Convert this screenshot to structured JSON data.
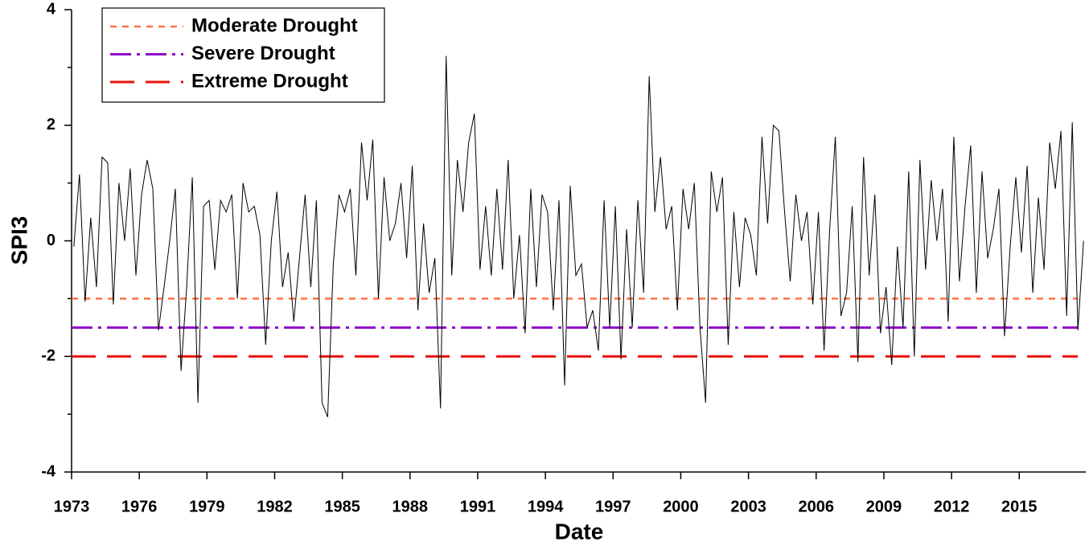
{
  "chart_data": {
    "type": "line",
    "x_label": "Date",
    "y_label": "SPI3",
    "xlim": [
      1973,
      2017.95
    ],
    "ylim": [
      -4,
      4
    ],
    "xticks": [
      1973,
      1976,
      1979,
      1982,
      1985,
      1988,
      1991,
      1994,
      1997,
      2000,
      2003,
      2006,
      2009,
      2012,
      2015
    ],
    "yticks": [
      -4,
      -2,
      0,
      2,
      4
    ],
    "yminor_ticks": [
      -3,
      -1,
      1,
      3
    ],
    "x": [
      1973.1,
      1973.35,
      1973.6,
      1973.85,
      1974.1,
      1974.35,
      1974.6,
      1974.85,
      1975.1,
      1975.35,
      1975.6,
      1975.85,
      1976.1,
      1976.35,
      1976.6,
      1976.85,
      1977.1,
      1977.35,
      1977.6,
      1977.85,
      1978.1,
      1978.35,
      1978.6,
      1978.85,
      1979.1,
      1979.35,
      1979.6,
      1979.85,
      1980.1,
      1980.35,
      1980.6,
      1980.85,
      1981.1,
      1981.35,
      1981.6,
      1981.85,
      1982.1,
      1982.35,
      1982.6,
      1982.85,
      1983.1,
      1983.35,
      1983.6,
      1983.85,
      1984.1,
      1984.35,
      1984.6,
      1984.85,
      1985.1,
      1985.35,
      1985.6,
      1985.85,
      1986.1,
      1986.35,
      1986.6,
      1986.85,
      1987.1,
      1987.35,
      1987.6,
      1987.85,
      1988.1,
      1988.35,
      1988.6,
      1988.85,
      1989.1,
      1989.35,
      1989.6,
      1989.85,
      1990.1,
      1990.35,
      1990.6,
      1990.85,
      1991.1,
      1991.35,
      1991.6,
      1991.85,
      1992.1,
      1992.35,
      1992.6,
      1992.85,
      1993.1,
      1993.35,
      1993.6,
      1993.85,
      1994.1,
      1994.35,
      1994.6,
      1994.85,
      1995.1,
      1995.35,
      1995.6,
      1995.85,
      1996.1,
      1996.35,
      1996.6,
      1996.85,
      1997.1,
      1997.35,
      1997.6,
      1997.85,
      1998.1,
      1998.35,
      1998.6,
      1998.85,
      1999.1,
      1999.35,
      1999.6,
      1999.85,
      2000.1,
      2000.35,
      2000.6,
      2000.85,
      2001.1,
      2001.35,
      2001.6,
      2001.85,
      2002.1,
      2002.35,
      2002.6,
      2002.85,
      2003.1,
      2003.35,
      2003.6,
      2003.85,
      2004.1,
      2004.35,
      2004.6,
      2004.85,
      2005.1,
      2005.35,
      2005.6,
      2005.85,
      2006.1,
      2006.35,
      2006.6,
      2006.85,
      2007.1,
      2007.35,
      2007.6,
      2007.85,
      2008.1,
      2008.35,
      2008.6,
      2008.85,
      2009.1,
      2009.35,
      2009.6,
      2009.85,
      2010.1,
      2010.35,
      2010.6,
      2010.85,
      2011.1,
      2011.35,
      2011.6,
      2011.85,
      2012.1,
      2012.35,
      2012.6,
      2012.85,
      2013.1,
      2013.35,
      2013.6,
      2013.85,
      2014.1,
      2014.35,
      2014.6,
      2014.85,
      2015.1,
      2015.35,
      2015.6,
      2015.85,
      2016.1,
      2016.35,
      2016.6,
      2016.85,
      2017.1,
      2017.35,
      2017.6,
      2017.85
    ],
    "series": [
      {
        "color": "#000000",
        "values": [
          -0.1,
          1.15,
          -1.05,
          0.4,
          -0.8,
          1.45,
          1.35,
          -1.1,
          1.0,
          0.0,
          1.25,
          -0.6,
          0.8,
          1.4,
          0.9,
          -1.55,
          -0.8,
          0.0,
          0.9,
          -2.25,
          -0.8,
          1.1,
          -2.8,
          0.6,
          0.7,
          -0.5,
          0.7,
          0.5,
          0.8,
          -1.0,
          1.0,
          0.5,
          0.6,
          0.1,
          -1.8,
          0.0,
          0.85,
          -0.8,
          -0.2,
          -1.4,
          -0.3,
          0.8,
          -0.8,
          0.7,
          -2.8,
          -3.05,
          -0.4,
          0.8,
          0.5,
          0.9,
          -0.6,
          1.7,
          0.7,
          1.75,
          -1.0,
          1.1,
          0.0,
          0.3,
          1.0,
          -0.3,
          1.3,
          -1.2,
          0.3,
          -0.9,
          -0.3,
          -2.9,
          3.2,
          -0.6,
          1.4,
          0.5,
          1.7,
          2.2,
          -0.5,
          0.6,
          -0.6,
          0.9,
          -0.5,
          1.4,
          -1.0,
          0.1,
          -1.6,
          0.9,
          -0.8,
          0.8,
          0.5,
          -1.2,
          0.7,
          -2.5,
          0.95,
          -0.6,
          -0.4,
          -1.5,
          -1.2,
          -1.9,
          0.7,
          -1.5,
          0.6,
          -2.05,
          0.2,
          -1.5,
          0.7,
          -0.9,
          2.85,
          0.5,
          1.45,
          0.2,
          0.6,
          -1.2,
          0.9,
          0.2,
          1.0,
          -1.5,
          -2.8,
          1.2,
          0.5,
          1.1,
          -1.8,
          0.5,
          -0.8,
          0.4,
          0.1,
          -0.6,
          1.8,
          0.3,
          2.0,
          1.9,
          0.5,
          -0.7,
          0.8,
          0.0,
          0.5,
          -1.1,
          0.5,
          -1.9,
          0.2,
          1.8,
          -1.3,
          -0.9,
          0.6,
          -2.1,
          1.45,
          -0.6,
          0.8,
          -1.6,
          -0.8,
          -2.15,
          -0.1,
          -1.5,
          1.2,
          -2.0,
          1.4,
          -0.5,
          1.05,
          0.0,
          0.9,
          -1.4,
          1.8,
          -0.7,
          0.6,
          1.65,
          -0.9,
          1.2,
          -0.3,
          0.2,
          0.9,
          -1.65,
          -0.1,
          1.1,
          -0.2,
          1.3,
          -0.9,
          0.75,
          -0.5,
          1.7,
          0.9,
          1.9,
          -1.3,
          2.05,
          -1.55,
          0.0
        ]
      }
    ],
    "thresholds": [
      {
        "name": "Moderate Drought",
        "value": -1,
        "color": "#ff7043",
        "dash": "8 7",
        "width": 2.5
      },
      {
        "name": "Severe Drought",
        "value": -1.5,
        "color": "#8e08c9",
        "dash": "26 7 4 7",
        "width": 3
      },
      {
        "name": "Extreme Drought",
        "value": -2,
        "color": "#e8100c",
        "dash": "30 14",
        "width": 3
      }
    ]
  }
}
